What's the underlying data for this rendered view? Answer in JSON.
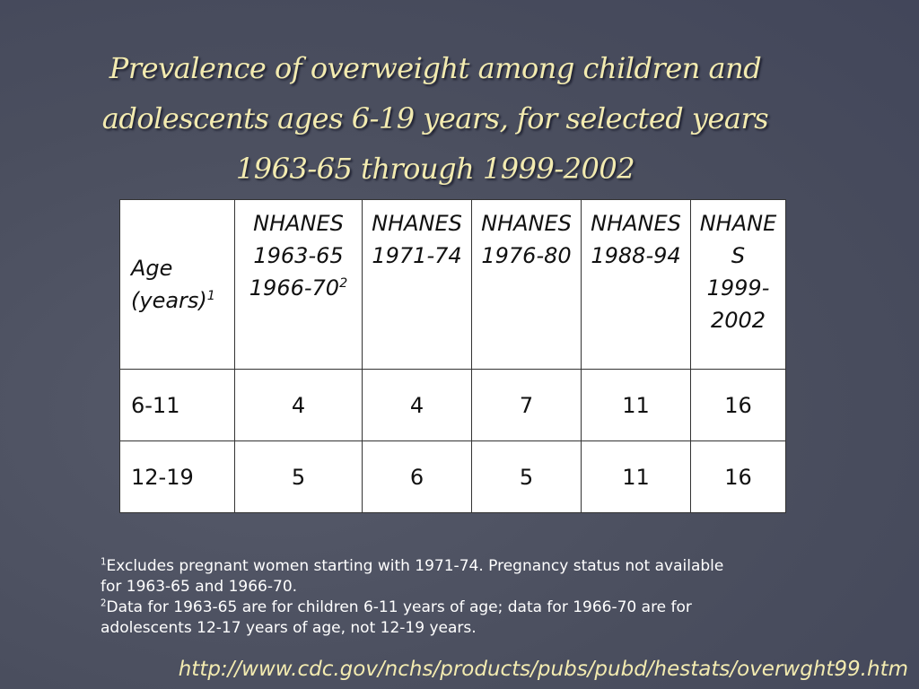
{
  "header": {
    "title": "Prevalence of overweight among children and adolescents ages 6-19 years, for selected years 1963-65 through 1999-2002"
  },
  "table": {
    "columns": [
      {
        "text": "Age (years)",
        "sup": "1"
      },
      {
        "text": "NHANES 1963-65 1966-70",
        "sup": "2"
      },
      {
        "text": "NHANES 1971-74"
      },
      {
        "text": "NHANES 1976-80"
      },
      {
        "text": "NHANES 1988-94"
      },
      {
        "text": "NHANES 1999-2002"
      }
    ],
    "rows": [
      [
        "6-11",
        4,
        4,
        7,
        11,
        16
      ],
      [
        "12-19",
        5,
        6,
        5,
        11,
        16
      ]
    ]
  },
  "footnotes": [
    {
      "mark": "1",
      "text": "Excludes pregnant women starting with 1971-74. Pregnancy status not available for 1963-65 and 1966-70."
    },
    {
      "mark": "2",
      "text": "Data for 1963-65 are for children 6-11 years of age; data for 1966-70 are for adolescents 12-17 years of age, not 12-19 years."
    }
  ],
  "source": "http://www.cdc.gov/nchs/products/pubs/pubd/hestats/overwght99.htm"
}
